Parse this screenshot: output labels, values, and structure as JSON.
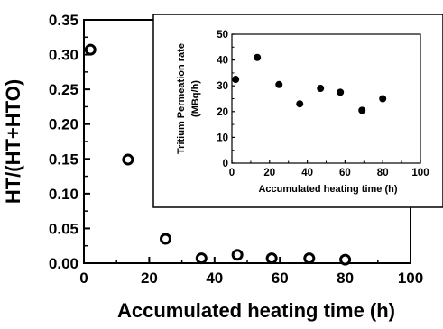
{
  "chart_data": [
    {
      "type": "scatter",
      "title": "",
      "xlabel": "Accumulated heating time (h)",
      "ylabel": "HT/(HT+HTO)",
      "xlim": [
        0,
        100
      ],
      "ylim": [
        0,
        0.35
      ],
      "x_ticks": [
        "0",
        "20",
        "40",
        "60",
        "80",
        "100"
      ],
      "y_ticks": [
        "0.00",
        "0.05",
        "0.10",
        "0.15",
        "0.20",
        "0.25",
        "0.30",
        "0.35"
      ],
      "marker": "open-circle",
      "grid": false,
      "series": [
        {
          "x": [
            2,
            13.5,
            25,
            36,
            47,
            57.5,
            69,
            80
          ],
          "y": [
            0.307,
            0.149,
            0.035,
            0.007,
            0.012,
            0.007,
            0.007,
            0.005
          ]
        }
      ]
    },
    {
      "type": "scatter",
      "title": "",
      "xlabel": "Accumulated heating time (h)",
      "ylabel": "Tritium Permeation rate",
      "ylabel_unit": "(MBq/h)",
      "xlim": [
        0,
        100
      ],
      "ylim": [
        0,
        50
      ],
      "x_ticks": [
        "0",
        "20",
        "40",
        "60",
        "80",
        "100"
      ],
      "y_ticks": [
        "0",
        "10",
        "20",
        "30",
        "40",
        "50"
      ],
      "marker": "filled-circle",
      "grid": false,
      "series": [
        {
          "x": [
            2,
            13.5,
            25,
            36,
            47,
            57.5,
            69,
            80
          ],
          "y": [
            32.5,
            41,
            30.5,
            23,
            29,
            27.5,
            20.5,
            25
          ]
        }
      ]
    }
  ]
}
